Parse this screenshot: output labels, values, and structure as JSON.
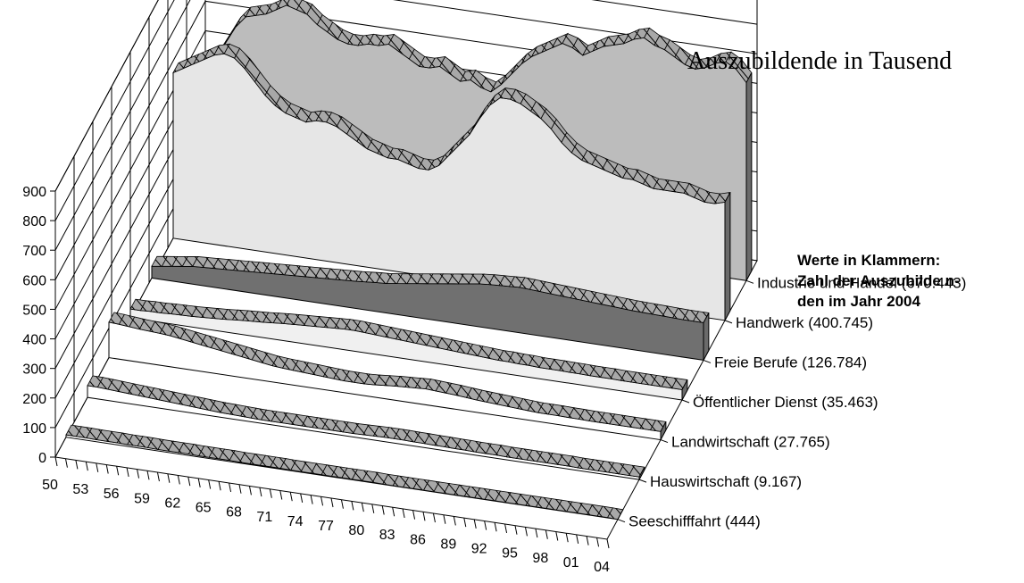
{
  "chart_data": {
    "type": "area",
    "title": "Auszubildende in Tausend",
    "note_lines": [
      "Werte in Klammern:",
      "Zahl der Auszubilde n-",
      "den im Jahr 2004"
    ],
    "ylim": [
      0,
      900
    ],
    "y_ticks": [
      "0",
      "100",
      "200",
      "300",
      "400",
      "500",
      "600",
      "700",
      "800",
      "900"
    ],
    "x_tick_labels": [
      "50",
      "53",
      "56",
      "59",
      "62",
      "65",
      "68",
      "71",
      "74",
      "77",
      "80",
      "83",
      "86",
      "89",
      "92",
      "95",
      "98",
      "01",
      "04"
    ],
    "x": [
      1950,
      1951,
      1952,
      1953,
      1954,
      1955,
      1956,
      1957,
      1958,
      1959,
      1960,
      1961,
      1962,
      1963,
      1964,
      1965,
      1966,
      1967,
      1968,
      1969,
      1970,
      1971,
      1972,
      1973,
      1974,
      1975,
      1976,
      1977,
      1978,
      1979,
      1980,
      1981,
      1982,
      1983,
      1984,
      1985,
      1986,
      1987,
      1988,
      1989,
      1990,
      1991,
      1992,
      1993,
      1994,
      1995,
      1996,
      1997,
      1998,
      1999,
      2000,
      2001,
      2002,
      2003,
      2004
    ],
    "series": [
      {
        "name": "Industrie und Handel",
        "label": "Industrie und Handel (670.443)",
        "values": [
          420,
          430,
          480,
          540,
          600,
          640,
          650,
          660,
          680,
          700,
          690,
          680,
          650,
          630,
          610,
          600,
          600,
          610,
          610,
          620,
          600,
          580,
          560,
          560,
          570,
          550,
          530,
          540,
          520,
          510,
          540,
          580,
          620,
          650,
          670,
          690,
          710,
          700,
          680,
          700,
          720,
          730,
          740,
          760,
          770,
          750,
          740,
          720,
          700,
          690,
          700,
          720,
          730,
          710,
          670
        ]
      },
      {
        "name": "Handwerk",
        "label": "Handwerk (400.745)",
        "values": [
          560,
          580,
          600,
          620,
          640,
          650,
          640,
          610,
          570,
          530,
          500,
          480,
          470,
          460,
          470,
          470,
          460,
          440,
          420,
          400,
          390,
          380,
          380,
          370,
          360,
          360,
          380,
          420,
          460,
          500,
          560,
          610,
          640,
          640,
          630,
          610,
          590,
          560,
          520,
          490,
          470,
          460,
          450,
          440,
          430,
          430,
          420,
          410,
          410,
          410,
          410,
          400,
          390,
          390,
          400
        ]
      },
      {
        "name": "Freie Berufe",
        "label": "Freie Berufe (126.784)",
        "values": [
          40,
          45,
          50,
          55,
          60,
          62,
          64,
          66,
          68,
          70,
          72,
          74,
          76,
          78,
          80,
          82,
          84,
          86,
          88,
          90,
          92,
          95,
          98,
          100,
          105,
          110,
          115,
          120,
          125,
          130,
          135,
          140,
          145,
          148,
          150,
          152,
          154,
          152,
          150,
          148,
          146,
          144,
          142,
          140,
          138,
          136,
          134,
          132,
          131,
          130,
          129,
          128,
          127,
          127,
          127
        ]
      },
      {
        "name": "Öffentlicher Dienst",
        "label": "Öffentlicher Dienst (35.463)",
        "values": [
          30,
          30,
          32,
          32,
          34,
          35,
          36,
          38,
          40,
          42,
          45,
          48,
          50,
          52,
          55,
          58,
          60,
          62,
          64,
          66,
          68,
          70,
          70,
          68,
          66,
          64,
          62,
          60,
          58,
          56,
          54,
          52,
          50,
          48,
          46,
          44,
          42,
          42,
          40,
          40,
          38,
          38,
          38,
          37,
          37,
          36,
          36,
          36,
          35,
          35,
          35,
          35,
          35,
          35,
          35
        ]
      },
      {
        "name": "Landwirtschaft",
        "label": "Landwirtschaft (27.765)",
        "values": [
          120,
          118,
          115,
          112,
          110,
          108,
          105,
          100,
          95,
          90,
          85,
          80,
          75,
          70,
          65,
          60,
          55,
          52,
          50,
          48,
          46,
          44,
          42,
          40,
          40,
          40,
          42,
          45,
          48,
          50,
          52,
          54,
          52,
          50,
          48,
          45,
          42,
          40,
          38,
          36,
          34,
          32,
          30,
          30,
          30,
          29,
          29,
          28,
          28,
          28,
          28,
          28,
          28,
          28,
          28
        ]
      },
      {
        "name": "Hauswirtschaft",
        "label": "Hauswirtschaft (9.167)",
        "values": [
          40,
          40,
          38,
          36,
          34,
          32,
          30,
          28,
          26,
          24,
          22,
          20,
          18,
          16,
          15,
          14,
          13,
          12,
          12,
          12,
          12,
          12,
          12,
          12,
          12,
          12,
          12,
          13,
          14,
          15,
          15,
          15,
          14,
          14,
          13,
          13,
          12,
          12,
          11,
          11,
          11,
          10,
          10,
          10,
          10,
          10,
          10,
          10,
          9,
          9,
          9,
          9,
          9,
          9,
          9
        ]
      },
      {
        "name": "Seeschifffahrt",
        "label": "Seeschifffahrt (444)",
        "values": [
          8,
          8,
          8,
          7,
          7,
          7,
          6,
          6,
          6,
          5,
          5,
          5,
          5,
          4,
          4,
          4,
          4,
          3,
          3,
          3,
          3,
          3,
          2,
          2,
          2,
          2,
          2,
          2,
          2,
          2,
          2,
          1,
          1,
          1,
          1,
          1,
          1,
          1,
          1,
          1,
          1,
          1,
          1,
          1,
          1,
          1,
          1,
          1,
          1,
          1,
          1,
          1,
          1,
          1,
          0
        ]
      }
    ],
    "colors": {
      "top_area": "#bcbcbc",
      "second_area": "#e6e6e6",
      "dark_area": "#707070",
      "light_area": "#f0f0f0",
      "rim": "#999999",
      "outline": "#000000"
    }
  }
}
